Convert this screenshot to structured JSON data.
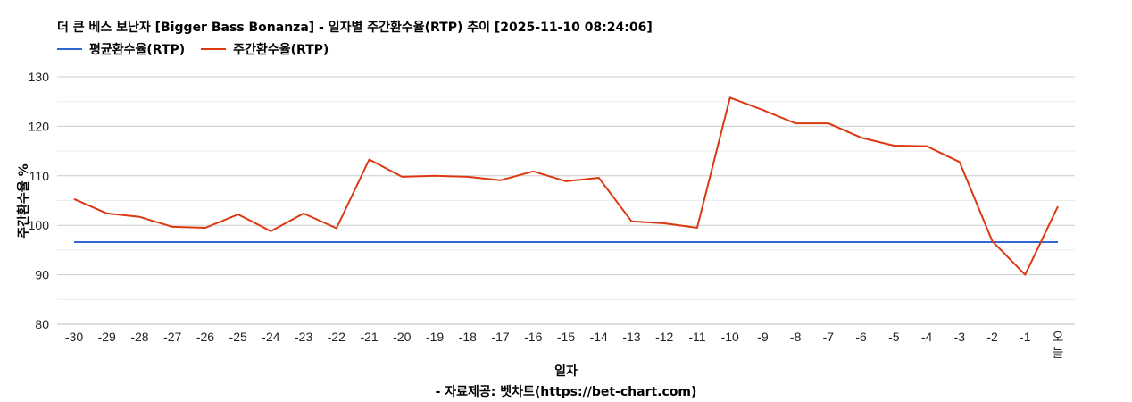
{
  "header": {
    "title": "더 큰 베스 보난자 [Bigger Bass Bonanza] - 일자별 주간환수율(RTP) 추이 [2025-11-10 08:24:06]"
  },
  "legend": [
    {
      "label": "평균환수율(RTP)",
      "color": "#3366cc"
    },
    {
      "label": "주간환수율(RTP)",
      "color": "#dc3912"
    }
  ],
  "axes": {
    "xlabel": "일자",
    "ylabel": "주간환수율 %"
  },
  "footer": {
    "source": "- 자료제공: 벳차트(https://bet-chart.com)"
  },
  "chart_data": {
    "type": "line",
    "title": "더 큰 베스 보난자 [Bigger Bass Bonanza] - 일자별 주간환수율(RTP) 추이 [2025-11-10 08:24:06]",
    "xlabel": "일자",
    "ylabel": "주간환수율 %",
    "ylim": [
      80,
      130
    ],
    "yticks": [
      80,
      90,
      100,
      110,
      120,
      130
    ],
    "grid": true,
    "legend_position": "top",
    "categories": [
      "-30",
      "-29",
      "-28",
      "-27",
      "-26",
      "-25",
      "-24",
      "-23",
      "-22",
      "-21",
      "-20",
      "-19",
      "-18",
      "-17",
      "-16",
      "-15",
      "-14",
      "-13",
      "-12",
      "-11",
      "-10",
      "-9",
      "-8",
      "-7",
      "-6",
      "-5",
      "-4",
      "-3",
      "-2",
      "-1",
      "오늘"
    ],
    "series": [
      {
        "name": "평균환수율(RTP)",
        "color": "#3366cc",
        "values": [
          96.6,
          96.6,
          96.6,
          96.6,
          96.6,
          96.6,
          96.6,
          96.6,
          96.6,
          96.6,
          96.6,
          96.6,
          96.6,
          96.6,
          96.6,
          96.6,
          96.6,
          96.6,
          96.6,
          96.6,
          96.6,
          96.6,
          96.6,
          96.6,
          96.6,
          96.6,
          96.6,
          96.6,
          96.6,
          96.6,
          96.6
        ]
      },
      {
        "name": "주간환수율(RTP)",
        "color": "#dc3912",
        "values": [
          105.3,
          102.4,
          101.7,
          99.7,
          99.5,
          102.2,
          98.8,
          102.4,
          99.4,
          113.3,
          109.8,
          110.0,
          109.8,
          109.1,
          110.9,
          108.9,
          109.6,
          100.8,
          100.4,
          99.5,
          125.8,
          123.3,
          120.6,
          120.6,
          117.7,
          116.1,
          116.0,
          112.8,
          96.8,
          90.0,
          103.8
        ]
      }
    ]
  }
}
